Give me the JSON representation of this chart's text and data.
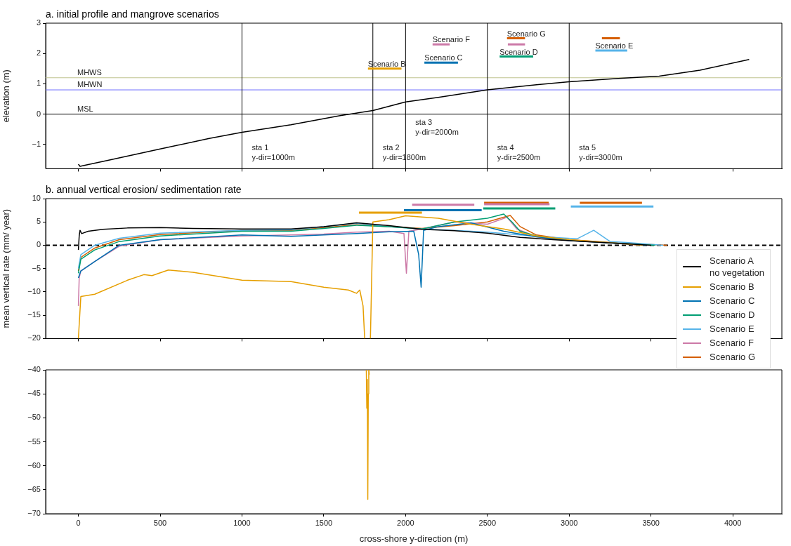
{
  "chart_data": [
    {
      "type": "line",
      "title": "a. initial profile and mangrove scenarios",
      "ylabel": "elevation (m)",
      "xlim": [
        -200,
        4300
      ],
      "ylim": [
        -1.8,
        3
      ],
      "yticks": [
        -1,
        0,
        1,
        2,
        3
      ],
      "xticks": [
        {
          "value": 0,
          "label": null
        },
        {
          "value": 500,
          "label": null
        },
        {
          "value": 1000,
          "label": null
        },
        {
          "value": 1500,
          "label": null
        },
        {
          "value": 2000,
          "label": null
        },
        {
          "value": 2500,
          "label": null
        },
        {
          "value": 3000,
          "label": null
        },
        {
          "value": 3500,
          "label": null
        },
        {
          "value": 4000,
          "label": null
        }
      ],
      "tick_labels": "y",
      "legend": false,
      "grid": false,
      "ref_lines": [
        {
          "axis": "y",
          "value": 0,
          "label": "MSL",
          "color": "#000000"
        },
        {
          "axis": "y",
          "value": 0.8,
          "label": "MHWN",
          "color": "#6b6bff"
        },
        {
          "axis": "y",
          "value": 1.2,
          "label": "MHWS",
          "color": "#bfc48e"
        },
        {
          "axis": "x",
          "value": 1000,
          "label": "sta 1\ny-dir=1000m",
          "color": "#000000"
        },
        {
          "axis": "x",
          "value": 1800,
          "label": "sta 2\ny-dir=1800m",
          "color": "#000000"
        },
        {
          "axis": "x",
          "value": 2000,
          "label": "sta 3\ny-dir=2000m",
          "color": "#000000"
        },
        {
          "axis": "x",
          "value": 2500,
          "label": "sta 4\ny-dir=2500m",
          "color": "#000000"
        },
        {
          "axis": "x",
          "value": 3000,
          "label": "sta 5\ny-dir=3000m",
          "color": "#000000"
        }
      ],
      "series": [
        {
          "color": "#000000",
          "x": [
            0,
            10,
            200,
            500,
            800,
            1000,
            1300,
            1600,
            1800,
            2000,
            2200,
            2500,
            2800,
            3000,
            3300,
            3550,
            3800,
            4100
          ],
          "values": [
            -1.65,
            -1.72,
            -1.5,
            -1.15,
            -0.8,
            -0.6,
            -0.35,
            -0.05,
            0.12,
            0.4,
            0.55,
            0.8,
            0.97,
            1.07,
            1.18,
            1.25,
            1.45,
            1.8
          ]
        },
        {
          "name": "Scenario B",
          "color": "#e69f00",
          "x": [
            1770,
            1975
          ],
          "values": [
            1.5,
            1.5
          ]
        },
        {
          "name": "Scenario C",
          "color": "#0072b2",
          "x": [
            2115,
            2320
          ],
          "values": [
            1.7,
            1.7
          ]
        },
        {
          "name": "Scenario F",
          "color": "#cc79a7",
          "x": [
            2165,
            2270
          ],
          "values": [
            2.3,
            2.3
          ]
        },
        {
          "name": "Scenario G",
          "color": "#d55e00",
          "x": [
            2620,
            2730
          ],
          "values": [
            2.5,
            2.5
          ]
        },
        {
          "color": "#cc79a7",
          "x": [
            2625,
            2730
          ],
          "values": [
            2.3,
            2.3
          ]
        },
        {
          "name": "Scenario D",
          "color": "#009e73",
          "x": [
            2575,
            2780
          ],
          "values": [
            1.9,
            1.9
          ]
        },
        {
          "color": "#d55e00",
          "x": [
            3200,
            3310
          ],
          "values": [
            2.5,
            2.5
          ]
        },
        {
          "name": "Scenario E",
          "color": "#56b4e9",
          "x": [
            3160,
            3355
          ],
          "values": [
            2.1,
            2.1
          ]
        }
      ]
    },
    {
      "type": "line",
      "title": "b. annual vertical erosion/ sedimentation rate",
      "ylabel": "mean vertical rate (mm/ year)",
      "xlim": [
        -200,
        4300
      ],
      "ylim": [
        -20,
        10
      ],
      "yticks": [
        -20,
        -15,
        -10,
        -5,
        0,
        5,
        10
      ],
      "xticks": [
        {
          "value": 0,
          "label": null
        },
        {
          "value": 500,
          "label": null
        },
        {
          "value": 1000,
          "label": null
        },
        {
          "value": 1500,
          "label": null
        },
        {
          "value": 2000,
          "label": null
        },
        {
          "value": 2500,
          "label": null
        },
        {
          "value": 3000,
          "label": null
        },
        {
          "value": 3500,
          "label": null
        },
        {
          "value": 4000,
          "label": null
        }
      ],
      "tick_labels": "y",
      "legend": "right",
      "grid": false,
      "ref_lines": [
        {
          "axis": "y",
          "value": 0,
          "color": "#000000",
          "line_style": "dashed"
        }
      ],
      "series": [
        {
          "name": "Scenario A\nno vegetation",
          "color": "#000000",
          "x": [
            0,
            5,
            10,
            20,
            60,
            150,
            300,
            500,
            700,
            1000,
            1300,
            1500,
            1700,
            1900,
            2100,
            2300,
            2500,
            2700,
            2900,
            3100,
            3300,
            3500
          ],
          "values": [
            -1,
            2,
            3.2,
            2.5,
            3,
            3.4,
            3.7,
            3.8,
            3.6,
            3.5,
            3.5,
            4,
            4.8,
            4.2,
            3.4,
            3.1,
            2.6,
            1.7,
            1.2,
            0.8,
            0.4,
            0
          ]
        },
        {
          "name": "Scenario B",
          "color": "#e69f00",
          "x": [
            0,
            15,
            100,
            300,
            400,
            450,
            550,
            700,
            1000,
            1300,
            1500,
            1650,
            1700,
            1720,
            1740,
            1750,
            1760,
            1785,
            1800,
            1900,
            2000,
            2200,
            2400,
            2600,
            2800,
            3000,
            3300,
            3450
          ],
          "values": [
            -20,
            -11,
            -10.5,
            -7.5,
            -6.3,
            -6.5,
            -5.3,
            -5.8,
            -7.5,
            -7.8,
            -9,
            -9.6,
            -10.3,
            -9.6,
            -13,
            -20,
            null,
            -20,
            5,
            5.5,
            6.3,
            5.8,
            4.5,
            3.5,
            2,
            1.2,
            0.4,
            0
          ]
        },
        {
          "name": "Scenario C",
          "color": "#0072b2",
          "x": [
            0,
            15,
            100,
            250,
            500,
            1000,
            1300,
            1500,
            1700,
            1900,
            2050,
            2080,
            2095,
            2110,
            2200,
            2400,
            2600,
            2800,
            3000,
            3300,
            3475
          ],
          "values": [
            -7,
            -5.5,
            -3.5,
            0,
            1.2,
            2.2,
            1.9,
            2.2,
            2.5,
            2.9,
            3,
            -2,
            -9,
            3.2,
            4,
            4.8,
            3,
            1.8,
            1,
            0.4,
            0
          ]
        },
        {
          "name": "Scenario D",
          "color": "#009e73",
          "x": [
            0,
            15,
            100,
            250,
            500,
            1000,
            1300,
            1500,
            1700,
            1900,
            2100,
            2300,
            2500,
            2600,
            2650,
            2700,
            2800,
            3000,
            3300,
            3525
          ],
          "values": [
            -6,
            -3,
            -1,
            0.8,
            2,
            3,
            3,
            3.6,
            4.3,
            4,
            3.5,
            5,
            5.8,
            6.7,
            5,
            3,
            2,
            1.1,
            0.4,
            0
          ]
        },
        {
          "name": "Scenario E",
          "color": "#56b4e9",
          "x": [
            0,
            15,
            100,
            250,
            500,
            1000,
            1300,
            1500,
            1700,
            1900,
            2100,
            2300,
            2500,
            2700,
            2900,
            3050,
            3150,
            3250,
            3350,
            3575
          ],
          "values": [
            -5,
            -2,
            0,
            1.5,
            2.6,
            3.2,
            3.3,
            4,
            4.7,
            4,
            3.5,
            3.2,
            2.8,
            2.2,
            1.7,
            1.4,
            3.2,
            0.8,
            0.6,
            0
          ]
        },
        {
          "name": "Scenario F",
          "color": "#cc79a7",
          "x": [
            0,
            5,
            15,
            100,
            250,
            500,
            1000,
            1300,
            1500,
            1700,
            1900,
            1990,
            2005,
            2020,
            2100,
            2300,
            2500,
            2620,
            2680,
            2800,
            3000,
            3300,
            3425
          ],
          "values": [
            -13,
            -7,
            -5.5,
            -3.5,
            -0.2,
            1.2,
            2,
            2.2,
            2.4,
            2.8,
            3,
            2.5,
            -6,
            3,
            3.5,
            5,
            4.5,
            6,
            3.5,
            1.8,
            1,
            0.4,
            0
          ]
        },
        {
          "name": "Scenario G",
          "color": "#d55e00",
          "x": [
            0,
            15,
            100,
            250,
            500,
            1000,
            1300,
            1500,
            1700,
            1900,
            2100,
            2300,
            2500,
            2600,
            2640,
            2700,
            2800,
            3000,
            3300,
            3600
          ],
          "values": [
            -5.5,
            -2.6,
            -0.6,
            1.2,
            2.3,
            3.2,
            3.2,
            3.8,
            4.4,
            4,
            3.6,
            4.2,
            5,
            6,
            6.4,
            4,
            2.2,
            1.2,
            0.5,
            0
          ]
        },
        {
          "color": "#e69f00",
          "x": [
            1715,
            2100
          ],
          "values": [
            7,
            7
          ]
        },
        {
          "color": "#cc79a7",
          "x": [
            2040,
            2420
          ],
          "values": [
            8.7,
            8.7
          ]
        },
        {
          "color": "#0072b2",
          "x": [
            1990,
            2465
          ],
          "values": [
            7.5,
            7.5
          ]
        },
        {
          "color": "#cc79a7",
          "x": [
            2480,
            2880
          ],
          "values": [
            8.8,
            8.8
          ]
        },
        {
          "color": "#d55e00",
          "x": [
            2480,
            2875
          ],
          "values": [
            9.1,
            9.1
          ]
        },
        {
          "color": "#009e73",
          "x": [
            2475,
            2915
          ],
          "values": [
            7.9,
            7.9
          ]
        },
        {
          "color": "#d55e00",
          "x": [
            3065,
            3445
          ],
          "values": [
            9.1,
            9.1
          ]
        },
        {
          "color": "#56b4e9",
          "x": [
            3010,
            3515
          ],
          "values": [
            8.3,
            8.3
          ]
        }
      ]
    },
    {
      "type": "line",
      "xlabel": "cross-shore y-direction (m)",
      "xlim": [
        -200,
        4300
      ],
      "ylim": [
        -70,
        -40
      ],
      "yticks": [
        -70,
        -65,
        -60,
        -55,
        -50,
        -45,
        -40
      ],
      "xticks": [
        0,
        500,
        1000,
        1500,
        2000,
        2500,
        3000,
        3500,
        4000
      ],
      "legend": false,
      "grid": false,
      "series": [
        {
          "color": "#e69f00",
          "x": [
            1760,
            1763,
            1766,
            1769,
            1772,
            1775,
            1778
          ],
          "values": [
            -40,
            -48,
            -42,
            -67,
            -45,
            -40,
            -41
          ]
        }
      ]
    }
  ]
}
